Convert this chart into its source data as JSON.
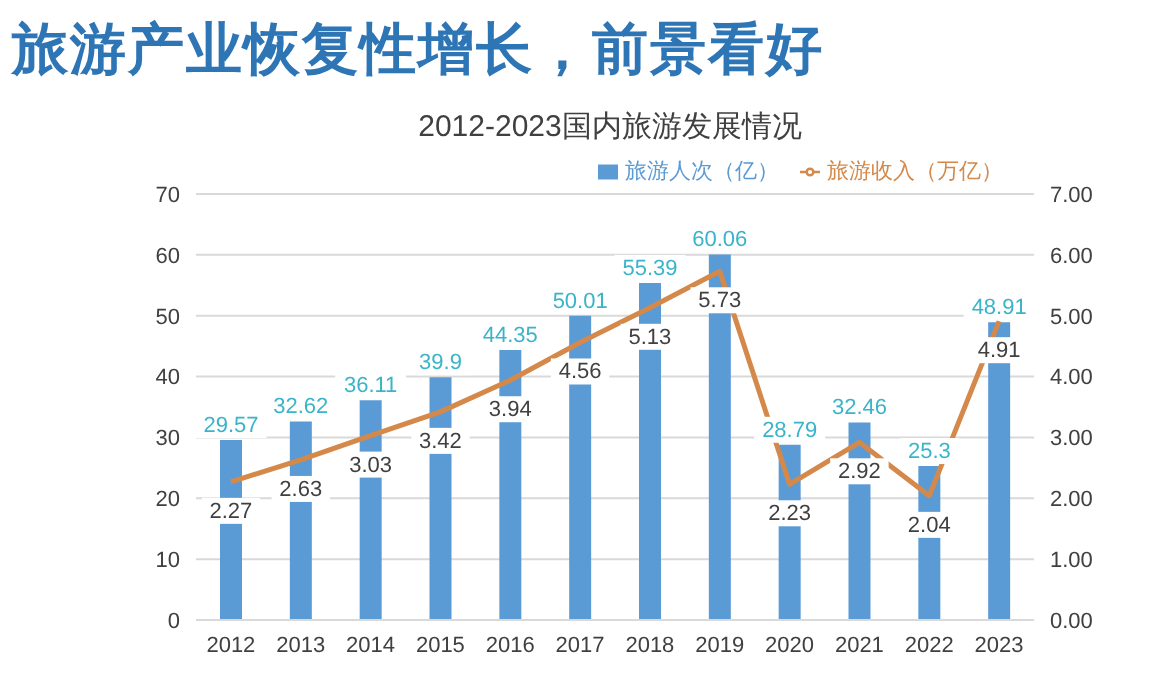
{
  "chart_data": {
    "type": "bar",
    "title": "旅游产业恢复性增长，前景看好",
    "subtitle": "2012-2023国内旅游发展情况",
    "categories": [
      "2012",
      "2013",
      "2014",
      "2015",
      "2016",
      "2017",
      "2018",
      "2019",
      "2020",
      "2021",
      "2022",
      "2023"
    ],
    "series": [
      {
        "name": "旅游人次（亿）",
        "color": "#5b9bd5",
        "values": [
          29.57,
          32.62,
          36.11,
          39.9,
          44.35,
          50.01,
          55.39,
          60.06,
          28.79,
          32.46,
          25.3,
          48.91
        ]
      },
      {
        "name": "旅游收入（万亿）",
        "type": "line",
        "axis": "y2",
        "color": "#d4894a",
        "values": [
          2.27,
          2.63,
          3.03,
          3.42,
          3.94,
          4.56,
          5.13,
          5.73,
          2.23,
          2.92,
          2.04,
          4.91
        ]
      }
    ],
    "ylim": [
      0,
      70
    ],
    "yticks": [
      0,
      10,
      20,
      30,
      40,
      50,
      60,
      70
    ],
    "y2lim": [
      0,
      7
    ],
    "y2ticks": [
      {
        "value": 0,
        "label": "0.00"
      },
      {
        "value": 1,
        "label": "1.00"
      },
      {
        "value": 2,
        "label": "2.00"
      },
      {
        "value": 3,
        "label": "3.00"
      },
      {
        "value": 4,
        "label": "4.00"
      },
      {
        "value": 5,
        "label": "5.00"
      },
      {
        "value": 6,
        "label": "6.00"
      },
      {
        "value": 7,
        "label": "7.00"
      }
    ],
    "data_labels": true,
    "grid": "y",
    "legend": "top",
    "marker": "none",
    "line_style": "solid"
  }
}
